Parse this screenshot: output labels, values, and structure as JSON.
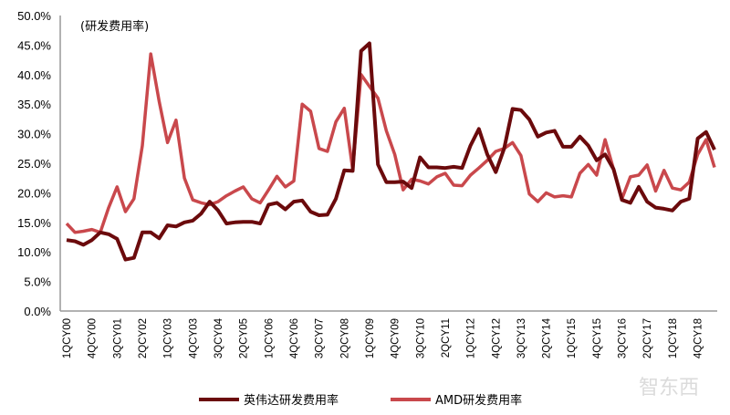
{
  "chart_data": {
    "type": "line",
    "title": "(研发费用率)",
    "xlabel": "",
    "ylabel": "",
    "ylim": [
      0,
      50
    ],
    "yticks": [
      "0.0%",
      "5.0%",
      "10.0%",
      "15.0%",
      "20.0%",
      "25.0%",
      "30.0%",
      "35.0%",
      "40.0%",
      "45.0%",
      "50.0%"
    ],
    "x_tick_labels": [
      "1QCY00",
      "4QCY00",
      "3QCY01",
      "2QCY02",
      "1QCY03",
      "4QCY03",
      "3QCY04",
      "2QCY05",
      "1QCY06",
      "4QCY06",
      "3QCY07",
      "2QCY08",
      "1QCY09",
      "4QCY09",
      "3QCY10",
      "2QCY11",
      "1QCY12",
      "4QCY12",
      "3QCY13",
      "2QCY14",
      "1QCY15",
      "4QCY15",
      "3QCY16",
      "2QCY17",
      "1QCY18",
      "4QCY18"
    ],
    "x_start": "1QCY00",
    "x_end": "2QCY19",
    "grid": false,
    "legend_position": "bottom",
    "series": [
      {
        "name": "英伟达研发费用率",
        "color": "#6b0a0c",
        "values": [
          12.0,
          11.8,
          11.2,
          12.0,
          13.3,
          13.0,
          12.2,
          8.7,
          9.0,
          13.3,
          13.3,
          12.3,
          14.5,
          14.3,
          15.0,
          15.3,
          16.5,
          18.5,
          17.0,
          14.8,
          15.0,
          15.1,
          15.1,
          14.8,
          18.0,
          18.3,
          17.2,
          18.5,
          18.7,
          16.8,
          16.2,
          16.3,
          19.0,
          23.8,
          23.7,
          44.0,
          45.3,
          24.8,
          21.8,
          21.8,
          21.9,
          20.8,
          26.0,
          24.3,
          24.3,
          24.2,
          24.4,
          24.2,
          28.0,
          30.8,
          26.5,
          23.5,
          27.5,
          34.2,
          34.0,
          32.4,
          29.5,
          30.2,
          30.5,
          27.8,
          27.8,
          29.5,
          28.0,
          25.5,
          26.5,
          24.0,
          18.8,
          18.3,
          21.0,
          18.5,
          17.5,
          17.3,
          17.0,
          18.5,
          19.0,
          29.2,
          30.3,
          27.3
        ]
      },
      {
        "name": "AMD研发费用率",
        "color": "#c9484c",
        "values": [
          14.8,
          13.3,
          13.5,
          13.8,
          13.3,
          17.5,
          21.0,
          16.8,
          19.0,
          28.0,
          43.5,
          35.5,
          28.5,
          32.3,
          22.5,
          18.8,
          18.3,
          18.0,
          18.5,
          19.5,
          20.3,
          21.0,
          19.0,
          18.3,
          20.5,
          22.8,
          21.0,
          22.0,
          35.0,
          33.8,
          27.5,
          27.0,
          32.0,
          34.3,
          24.0,
          40.0,
          38.0,
          36.0,
          30.5,
          26.5,
          20.5,
          22.3,
          22.0,
          21.5,
          22.7,
          23.3,
          21.3,
          21.2,
          23.0,
          24.2,
          25.5,
          27.0,
          27.5,
          28.5,
          26.3,
          19.8,
          18.5,
          20.0,
          19.3,
          19.5,
          19.3,
          23.3,
          24.8,
          23.0,
          29.0,
          24.0,
          19.0,
          22.7,
          23.0,
          24.7,
          20.3,
          23.8,
          20.8,
          20.5,
          21.8,
          26.5,
          29.0,
          24.3
        ]
      }
    ]
  },
  "watermark": "智东西"
}
